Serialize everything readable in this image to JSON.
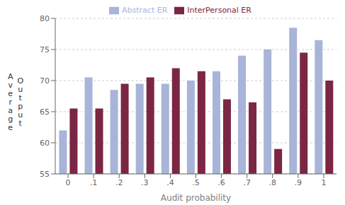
{
  "chart_data": {
    "type": "bar",
    "categories": [
      "0",
      ".1",
      ".2",
      ".3",
      ".4",
      ".5",
      ".6",
      ".7",
      ".8",
      ".9",
      "1"
    ],
    "series": [
      {
        "name": "Abstract ER",
        "color": "#a8b4d8",
        "values": [
          62,
          70.5,
          68.5,
          69.5,
          69.5,
          70,
          71.5,
          74,
          75,
          78.5,
          76.5
        ]
      },
      {
        "name": "InterPersonal ER",
        "color": "#7b2642",
        "values": [
          65.5,
          65.5,
          69.5,
          70.5,
          72,
          71.5,
          67,
          66.5,
          59,
          74.5,
          70
        ]
      }
    ],
    "xlabel": "Audit probability",
    "ylabel": "Average Output",
    "ylim": [
      55,
      80
    ],
    "yticks": [
      55,
      60,
      65,
      70,
      75,
      80
    ],
    "grid": true,
    "legend": "top"
  }
}
